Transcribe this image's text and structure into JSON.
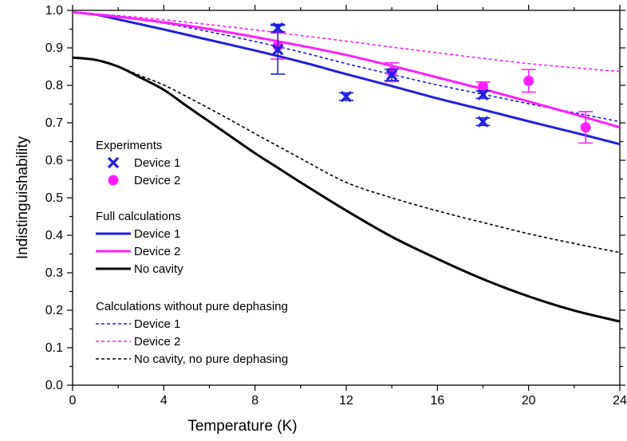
{
  "chart_data": {
    "type": "line",
    "title": "",
    "xlabel": "Temperature (K)",
    "ylabel": "Indistinguishability",
    "xlim": [
      0,
      24
    ],
    "ylim": [
      0.0,
      1.0
    ],
    "xticks": [
      0,
      4,
      8,
      12,
      16,
      20,
      24
    ],
    "xtick_labels": [
      "0",
      "4",
      "8",
      "12",
      "16",
      "20",
      "24"
    ],
    "yticks": [
      0.0,
      0.1,
      0.2,
      0.3,
      0.4,
      0.5,
      0.6,
      0.7,
      0.8,
      0.9,
      1.0
    ],
    "ytick_labels": [
      "0.0",
      "0.1",
      "0.2",
      "0.3",
      "0.4",
      "0.5",
      "0.6",
      "0.7",
      "0.8",
      "0.9",
      "1.0"
    ],
    "grid": false,
    "legend_position": "left",
    "legend_groups": [
      {
        "title": "Experiments",
        "entries": [
          {
            "ref": "exp_device1",
            "label": "Device 1"
          },
          {
            "ref": "exp_device2",
            "label": "Device 2"
          }
        ]
      },
      {
        "title": "Full calculations",
        "entries": [
          {
            "ref": "full_device1",
            "label": "Device 1"
          },
          {
            "ref": "full_device2",
            "label": "Device 2"
          },
          {
            "ref": "full_nocavity",
            "label": "No cavity"
          }
        ]
      },
      {
        "title": "Calculations without pure dephasing",
        "entries": [
          {
            "ref": "nopd_device1",
            "label": "Device 1"
          },
          {
            "ref": "nopd_device2",
            "label": "Device 2"
          },
          {
            "ref": "nopd_nocavity",
            "label": "No cavity, no pure dephasing"
          }
        ]
      }
    ],
    "series": [
      {
        "id": "full_device1",
        "name": "Device 1",
        "kind": "line",
        "style": "solid",
        "color": "#1f1fe0",
        "x": [
          0,
          1,
          2,
          4,
          6,
          8,
          10,
          12,
          14,
          16,
          18,
          20,
          22,
          24
        ],
        "y": [
          0.995,
          0.989,
          0.976,
          0.949,
          0.921,
          0.893,
          0.863,
          0.83,
          0.798,
          0.765,
          0.735,
          0.704,
          0.674,
          0.643
        ]
      },
      {
        "id": "full_device2",
        "name": "Device 2",
        "kind": "line",
        "style": "solid",
        "color": "#ff1fff",
        "x": [
          0,
          2,
          4,
          6,
          8,
          10,
          12,
          14,
          16,
          18,
          20,
          22,
          24
        ],
        "y": [
          0.995,
          0.983,
          0.968,
          0.95,
          0.929,
          0.906,
          0.881,
          0.852,
          0.821,
          0.79,
          0.757,
          0.723,
          0.688
        ]
      },
      {
        "id": "full_nocavity",
        "name": "No cavity",
        "kind": "line",
        "style": "solid",
        "color": "#000000",
        "x": [
          0,
          1,
          2,
          3,
          4,
          5,
          6,
          7,
          8,
          9,
          10,
          12,
          14,
          16,
          18,
          20,
          22,
          24
        ],
        "y": [
          0.874,
          0.868,
          0.85,
          0.82,
          0.788,
          0.745,
          0.703,
          0.661,
          0.619,
          0.58,
          0.541,
          0.466,
          0.396,
          0.337,
          0.283,
          0.237,
          0.199,
          0.17
        ]
      },
      {
        "id": "nopd_device1",
        "name": "Device 1",
        "kind": "line",
        "style": "dashed",
        "color": "#1f1fe0",
        "x": [
          0,
          2,
          4,
          6,
          8,
          10,
          12,
          14,
          16,
          18,
          20,
          22,
          24
        ],
        "y": [
          0.995,
          0.985,
          0.966,
          0.943,
          0.917,
          0.889,
          0.858,
          0.829,
          0.801,
          0.776,
          0.751,
          0.727,
          0.703
        ]
      },
      {
        "id": "nopd_device2",
        "name": "Device 2",
        "kind": "line",
        "style": "dashed",
        "color": "#ff1fff",
        "x": [
          0,
          2,
          4,
          6,
          8,
          10,
          12,
          14,
          16,
          18,
          20,
          22,
          24
        ],
        "y": [
          0.995,
          0.986,
          0.975,
          0.962,
          0.948,
          0.933,
          0.918,
          0.902,
          0.887,
          0.872,
          0.858,
          0.847,
          0.837
        ]
      },
      {
        "id": "nopd_nocavity",
        "name": "No cavity, no pure dephasing",
        "kind": "line",
        "style": "dashed",
        "color": "#000000",
        "x": [
          0,
          1,
          2,
          3,
          4,
          5,
          6,
          7,
          8,
          9,
          10,
          12,
          14,
          16,
          18,
          20,
          22,
          24
        ],
        "y": [
          0.874,
          0.868,
          0.85,
          0.825,
          0.801,
          0.77,
          0.738,
          0.705,
          0.671,
          0.638,
          0.605,
          0.541,
          0.5,
          0.465,
          0.434,
          0.404,
          0.378,
          0.354
        ]
      },
      {
        "id": "exp_device1",
        "name": "Device 1",
        "kind": "scatter",
        "marker": "x",
        "color": "#1f1fe0",
        "points": [
          {
            "x": 9,
            "y": 0.953,
            "err": 0.01
          },
          {
            "x": 9,
            "y": 0.895,
            "err": 0.065
          },
          {
            "x": 12,
            "y": 0.77,
            "err": 0.01
          },
          {
            "x": 14,
            "y": 0.828,
            "err": 0.015
          },
          {
            "x": 18,
            "y": 0.775,
            "err": 0.01
          },
          {
            "x": 18,
            "y": 0.703,
            "err": 0.01
          }
        ]
      },
      {
        "id": "exp_device2",
        "name": "Device 2",
        "kind": "scatter",
        "marker": "circle",
        "color": "#ff1fff",
        "points": [
          {
            "x": 9,
            "y": 0.905,
            "err": 0.035
          },
          {
            "x": 14,
            "y": 0.835,
            "err": 0.025
          },
          {
            "x": 18,
            "y": 0.797,
            "err": 0.012
          },
          {
            "x": 20,
            "y": 0.812,
            "err": 0.03
          },
          {
            "x": 22.5,
            "y": 0.688,
            "err": 0.042
          }
        ]
      }
    ]
  }
}
